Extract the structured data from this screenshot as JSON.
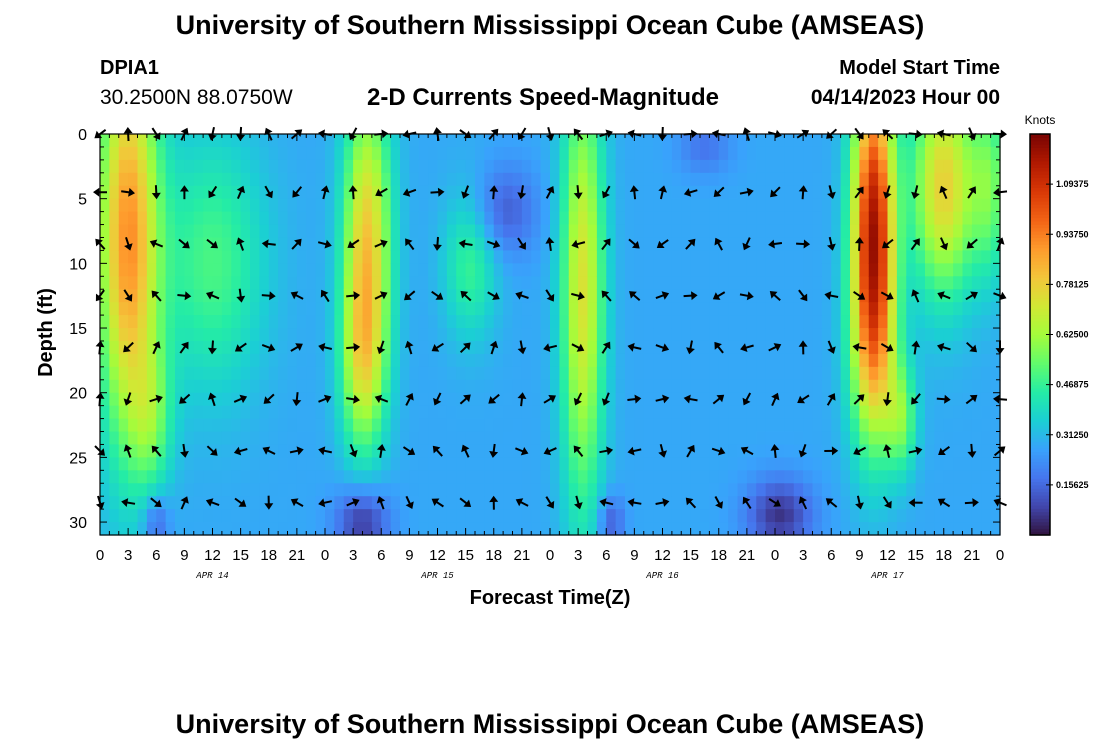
{
  "header": {
    "title": "University of Southern Mississippi Ocean Cube (AMSEAS)",
    "station_id": "DPIA1",
    "coordinates": "30.2500N  88.0750W",
    "subtitle": "2-D Currents Speed-Magnitude",
    "start_label": "Model Start Time",
    "start_value": "04/14/2023 Hour 00"
  },
  "footer": {
    "title": "University of Southern Mississippi Ocean Cube (AMSEAS)"
  },
  "colors": {
    "colormap": [
      "#30123b",
      "#4145ab",
      "#4675ed",
      "#39a2fc",
      "#1bcfd4",
      "#24eca6",
      "#61fc6c",
      "#a4fc3b",
      "#d1e834",
      "#f3c63a",
      "#fe9b2d",
      "#f36315",
      "#d93806",
      "#b11901",
      "#7a0402"
    ],
    "arrow": "#000000",
    "frame": "#000000"
  },
  "chart_data": {
    "type": "heatmap",
    "title": "2-D Currents Speed-Magnitude",
    "xlabel": "Forecast Time(Z)",
    "ylabel": "Depth (ft)",
    "x_range_hours": [
      0,
      96
    ],
    "ylim": [
      0,
      31
    ],
    "y_inverted": true,
    "x_ticks_hours": [
      0,
      3,
      6,
      9,
      12,
      15,
      18,
      21,
      24,
      27,
      30,
      33,
      36,
      39,
      42,
      45,
      48,
      51,
      54,
      57,
      60,
      63,
      66,
      69,
      72,
      75,
      78,
      81,
      84,
      87,
      90,
      93,
      96
    ],
    "x_tick_labels": [
      "0",
      "3",
      "6",
      "9",
      "12",
      "15",
      "18",
      "21",
      "0",
      "3",
      "6",
      "9",
      "12",
      "15",
      "18",
      "21",
      "0",
      "3",
      "6",
      "9",
      "12",
      "15",
      "18",
      "21",
      "0",
      "3",
      "6",
      "9",
      "12",
      "15",
      "18",
      "21",
      "0"
    ],
    "day_labels": [
      {
        "hour": 12,
        "text": "APR 14"
      },
      {
        "hour": 36,
        "text": "APR 15"
      },
      {
        "hour": 60,
        "text": "APR 16"
      },
      {
        "hour": 84,
        "text": "APR 17"
      }
    ],
    "y_ticks": [
      0,
      5,
      10,
      15,
      20,
      25,
      30
    ],
    "colorbar": {
      "label": "Knots",
      "range": [
        0,
        1.25
      ],
      "ticks": [
        0.15625,
        0.3125,
        0.46875,
        0.625,
        0.78125,
        0.9375,
        1.09375
      ],
      "tick_labels": [
        "0.15625",
        "0.31250",
        "0.46875",
        "0.62500",
        "0.78125",
        "0.93750",
        "1.09375"
      ]
    },
    "arrow_depths_ft": [
      0,
      4.5,
      8.5,
      12.5,
      16.5,
      20.5,
      24.5,
      28.5
    ],
    "arrow_hours": [
      0,
      3,
      6,
      9,
      12,
      15,
      18,
      21,
      24,
      27,
      30,
      33,
      36,
      39,
      42,
      45,
      48,
      51,
      54,
      57,
      60,
      63,
      66,
      69,
      72,
      75,
      78,
      81,
      84,
      87,
      90,
      93,
      96
    ],
    "speed_features": [
      {
        "hour": 3,
        "depth": 8,
        "sigma_h": 2.3,
        "sigma_d": 11,
        "amp": 0.62
      },
      {
        "hour": 5.5,
        "depth": 22,
        "sigma_h": 1.6,
        "sigma_d": 4,
        "amp": 0.2
      },
      {
        "hour": 12,
        "depth": 10,
        "sigma_h": 4,
        "sigma_d": 7,
        "amp": 0.22
      },
      {
        "hour": 28.5,
        "depth": 8,
        "sigma_h": 1.8,
        "sigma_d": 8,
        "amp": 0.5
      },
      {
        "hour": 28,
        "depth": 18,
        "sigma_h": 1.7,
        "sigma_d": 5,
        "amp": 0.3
      },
      {
        "hour": 39.5,
        "depth": 10,
        "sigma_h": 2,
        "sigma_d": 4,
        "amp": 0.2
      },
      {
        "hour": 51.5,
        "depth": 12,
        "sigma_h": 1.6,
        "sigma_d": 12,
        "amp": 0.45
      },
      {
        "hour": 82.5,
        "depth": 6,
        "sigma_h": 1.6,
        "sigma_d": 8,
        "amp": 0.82
      },
      {
        "hour": 82.5,
        "depth": 17,
        "sigma_h": 1.8,
        "sigma_d": 6,
        "amp": 0.38
      },
      {
        "hour": 90,
        "depth": 4,
        "sigma_h": 2.4,
        "sigma_d": 6,
        "amp": 0.5
      },
      {
        "hour": 95,
        "depth": 4,
        "sigma_h": 1.5,
        "sigma_d": 5,
        "amp": 0.25
      },
      {
        "hour": 85.5,
        "depth": 22,
        "sigma_h": 1.2,
        "sigma_d": 3,
        "amp": 0.25
      }
    ],
    "calm_features": [
      {
        "hour": 28,
        "depth": 30,
        "sigma_h": 2,
        "sigma_d": 2,
        "amp": 0.22
      },
      {
        "hour": 72.5,
        "depth": 29.5,
        "sigma_h": 2.5,
        "sigma_d": 2,
        "amp": 0.22
      },
      {
        "hour": 43,
        "depth": 6,
        "sigma_h": 2.5,
        "sigma_d": 2.5,
        "amp": 0.15
      },
      {
        "hour": 6,
        "depth": 30,
        "sigma_h": 1,
        "sigma_d": 1.5,
        "amp": 0.15
      },
      {
        "hour": 54.5,
        "depth": 30,
        "sigma_h": 1,
        "sigma_d": 1.5,
        "amp": 0.15
      },
      {
        "hour": 64.5,
        "depth": 1,
        "sigma_h": 2,
        "sigma_d": 1.5,
        "amp": 0.1
      }
    ],
    "base_speed": 0.28
  }
}
